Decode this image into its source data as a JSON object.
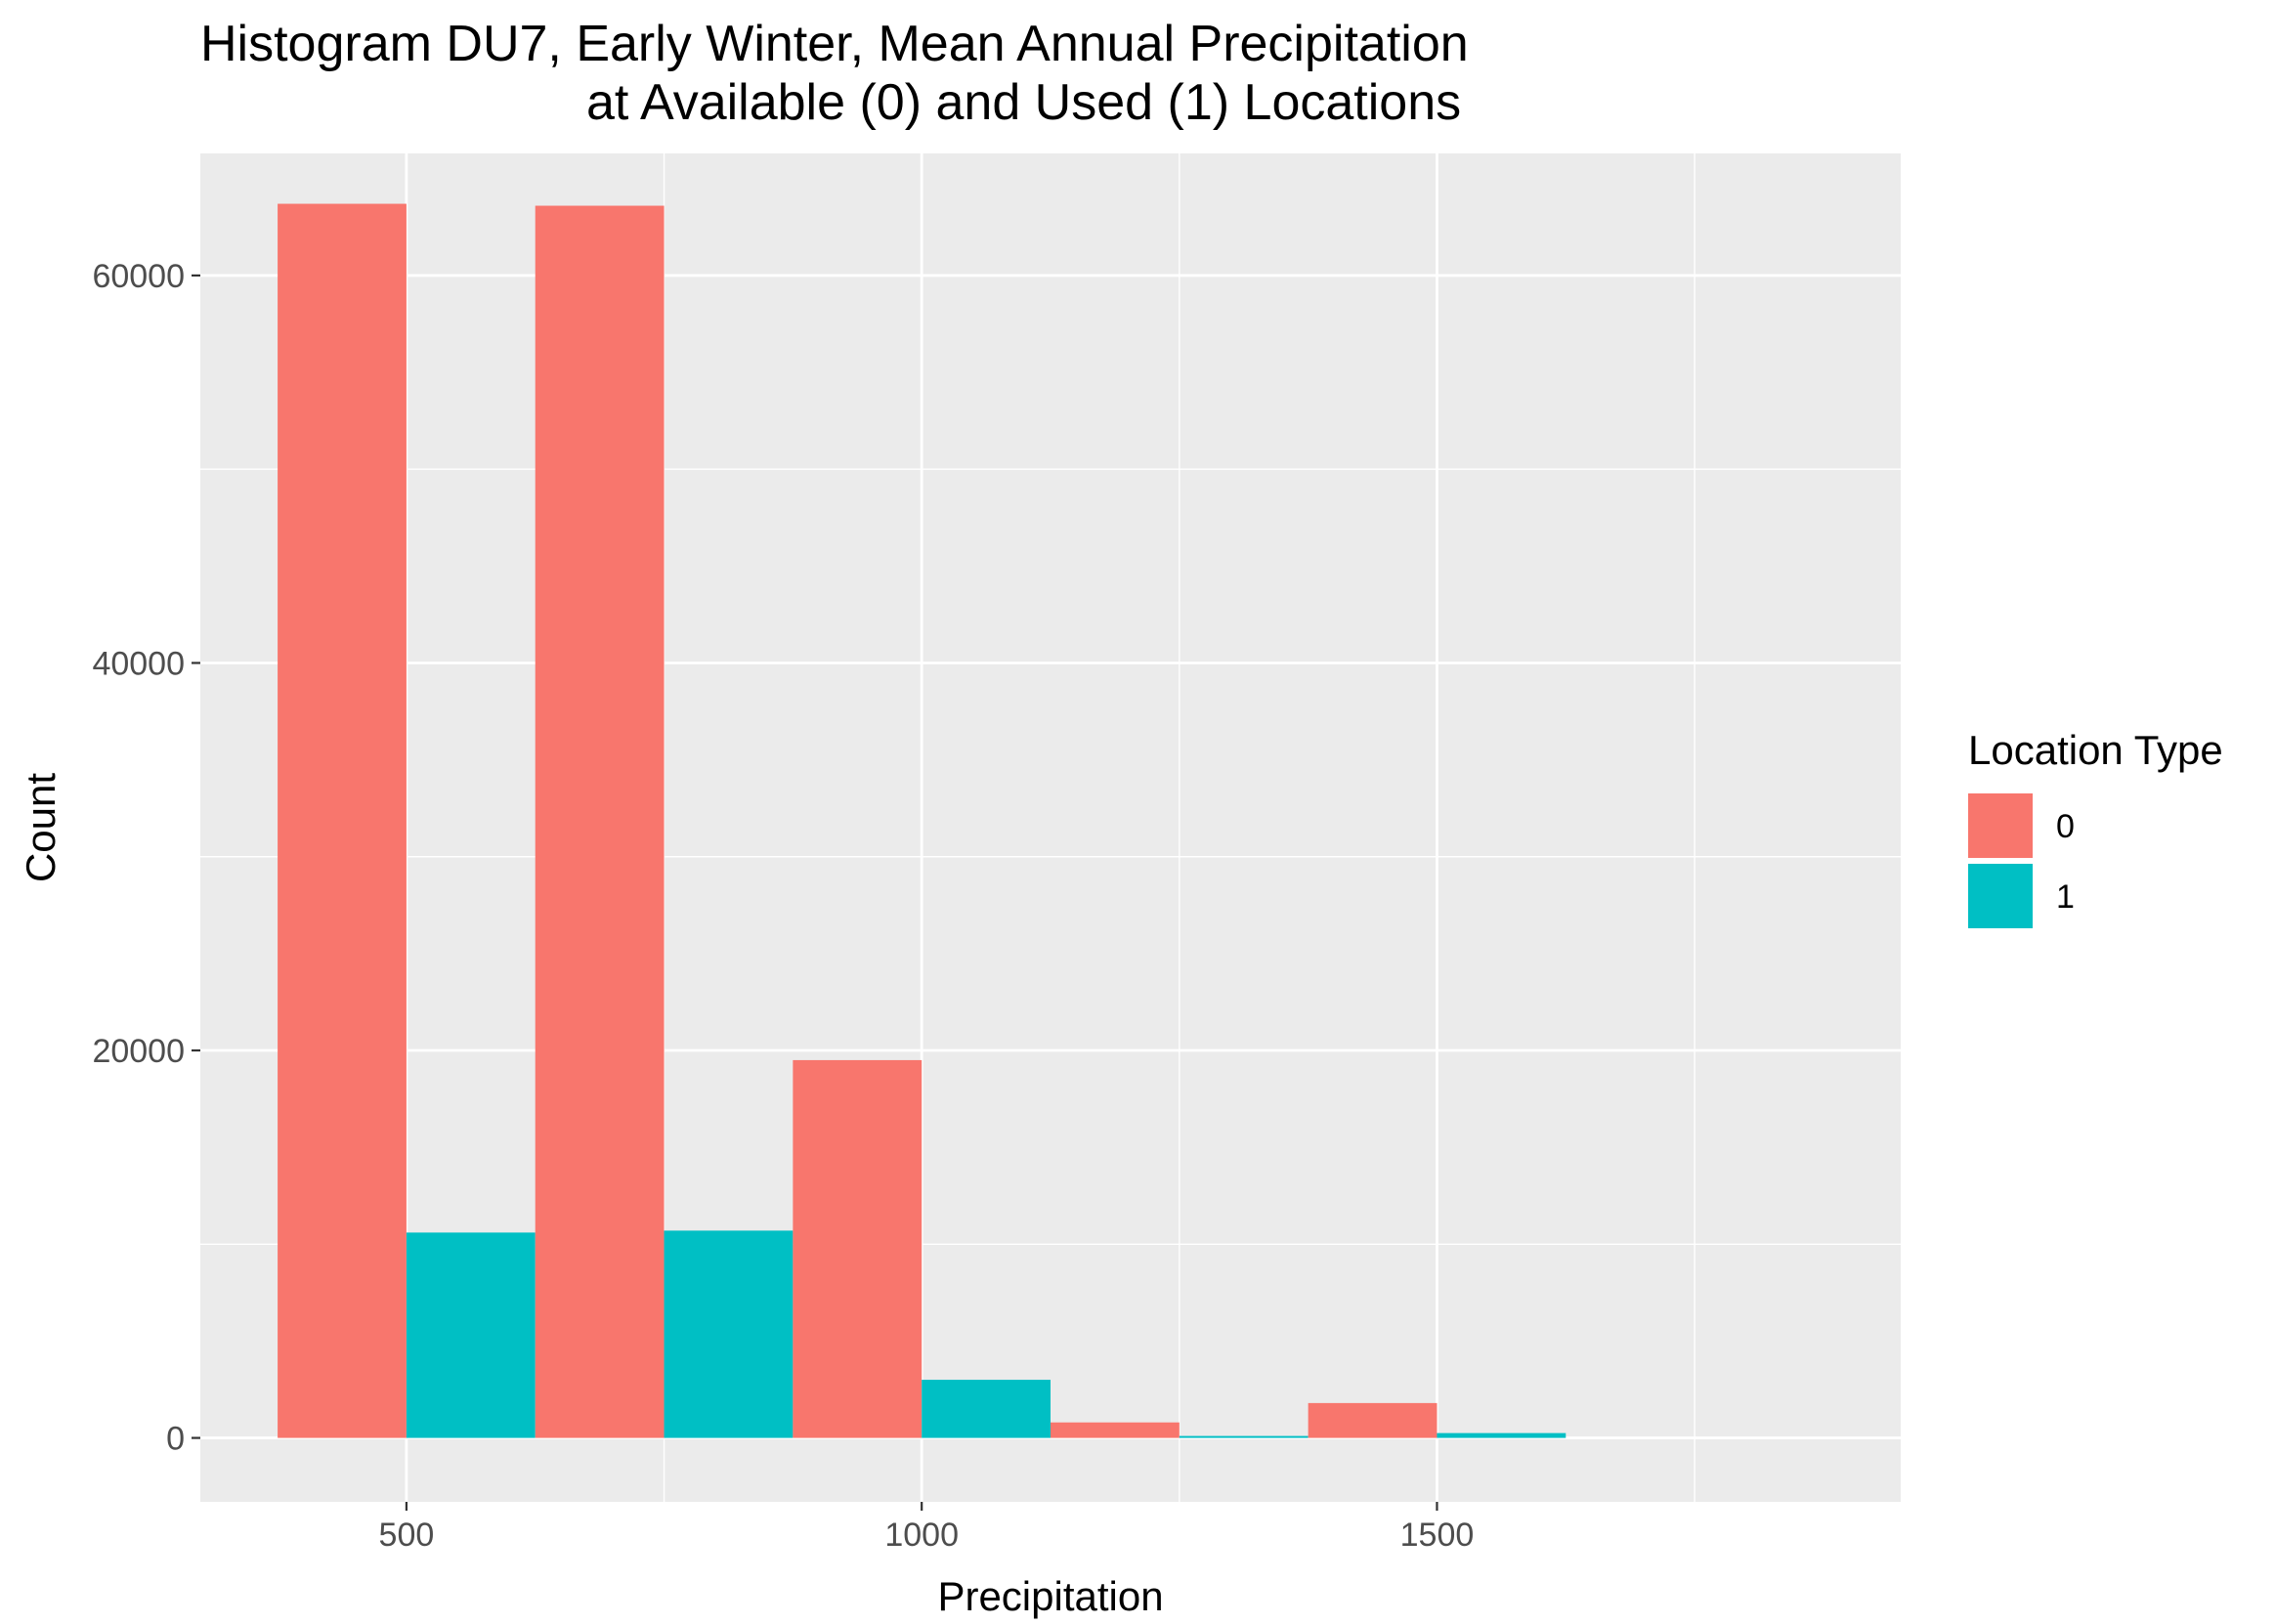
{
  "chart_data": {
    "type": "bar",
    "subtype": "histogram-dodged",
    "title_line1": "Histogram DU7, Early Winter, Mean Annual Precipitation",
    "title_line2": "at Available (0) and Used (1) Locations",
    "xlabel": "Precipitation",
    "ylabel": "Count",
    "xlim": [
      300,
      1950
    ],
    "ylim": [
      -3300,
      66300
    ],
    "x_ticks": [
      500,
      1000,
      1500
    ],
    "x_minor_ticks": [
      750,
      1250,
      1750
    ],
    "y_ticks": [
      0,
      20000,
      40000,
      60000
    ],
    "y_minor_ticks": [
      10000,
      30000,
      50000
    ],
    "bin_width": 250,
    "bin_centers": [
      500,
      750,
      1000,
      1250,
      1500,
      1750
    ],
    "series": [
      {
        "name": "0",
        "color": "#F8766D",
        "values": [
          63700,
          63600,
          19500,
          800,
          1800,
          0
        ]
      },
      {
        "name": "1",
        "color": "#00BFC4",
        "values": [
          10600,
          10700,
          3000,
          100,
          250,
          0
        ]
      }
    ],
    "grid": true,
    "panel_background": "#EBEBEB",
    "legend": {
      "title": "Location Type",
      "position": "right"
    }
  }
}
